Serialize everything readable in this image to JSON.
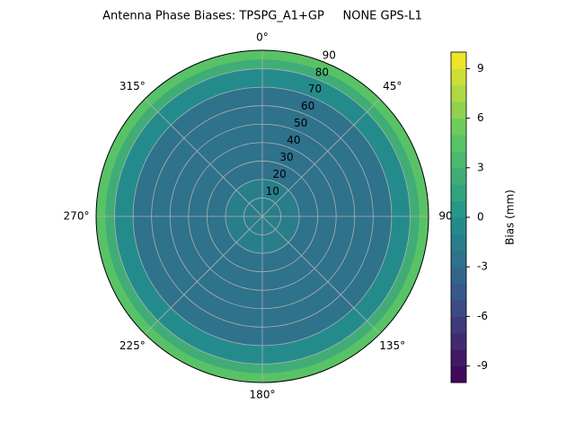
{
  "chart_data": {
    "type": "polar-contour",
    "title": "Antenna Phase Biases: TPSPG_A1+GP     NONE GPS-L1",
    "colorbar_label": "Bias (mm)",
    "zenith_bins": [
      0,
      10,
      20,
      30,
      40,
      50,
      60,
      70,
      80,
      85,
      90
    ],
    "values": [
      -1.5,
      -2,
      -2.5,
      -2.5,
      -2.5,
      -2.5,
      -2.5,
      -1,
      2,
      4
    ],
    "rlim": [
      0,
      90
    ],
    "rticks": [
      10,
      20,
      30,
      40,
      50,
      60,
      70,
      80,
      90
    ],
    "thetaticks": [
      {
        "value": 0,
        "label": "0°"
      },
      {
        "value": 45,
        "label": "45°"
      },
      {
        "value": 90,
        "label": "90°"
      },
      {
        "value": 135,
        "label": "135°"
      },
      {
        "value": 180,
        "label": "180°"
      },
      {
        "value": 225,
        "label": "225°"
      },
      {
        "value": 270,
        "label": "270°"
      },
      {
        "value": 315,
        "label": "315°"
      }
    ],
    "clim": [
      -10,
      10
    ],
    "levels": [
      -10,
      -9,
      -8,
      -7,
      -6,
      -5,
      -4,
      -3,
      -2,
      -1,
      0,
      1,
      2,
      3,
      4,
      5,
      6,
      7,
      8,
      9,
      10
    ],
    "cticks": [
      -9,
      -6,
      -3,
      0,
      3,
      6,
      9
    ],
    "colormap": [
      "#440154",
      "#3b528b",
      "#21918c",
      "#5ec962",
      "#fde725"
    ],
    "grid": true
  }
}
